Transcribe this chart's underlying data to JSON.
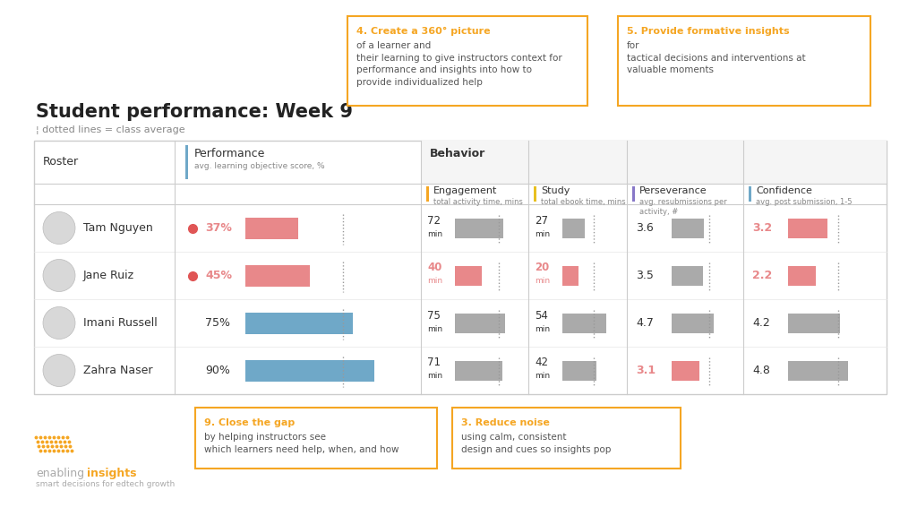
{
  "title": "Student performance: Week 9",
  "subtitle": "¦ dotted lines = class average",
  "students": [
    "Tam Nguyen",
    "Jane Ruiz",
    "Imani Russell",
    "Zahra Naser"
  ],
  "performance": {
    "values": [
      37,
      45,
      75,
      90
    ],
    "low_flags": [
      true,
      true,
      false,
      false
    ],
    "class_avg_pct": 68
  },
  "engagement": {
    "values": [
      72,
      40,
      75,
      71
    ],
    "low_flags": [
      false,
      true,
      false,
      false
    ],
    "class_avg": 65
  },
  "study": {
    "values": [
      27,
      20,
      54,
      42
    ],
    "low_flags": [
      false,
      true,
      false,
      false
    ],
    "class_avg": 38
  },
  "perseverance": {
    "values": [
      3.6,
      3.5,
      4.7,
      3.1
    ],
    "low_flags": [
      false,
      false,
      false,
      true
    ],
    "class_avg": 4.2
  },
  "confidence": {
    "values": [
      3.2,
      2.2,
      4.2,
      4.8
    ],
    "low_flags": [
      true,
      true,
      false,
      false
    ],
    "class_avg": 4.0
  },
  "colors": {
    "low": "#e8888a",
    "normal_blue": "#6fa8c8",
    "normal_gray": "#aaaaaa",
    "orange": "#f5a623",
    "red_dot": "#e05555",
    "background": "#ffffff",
    "header_blue_line": "#6fa8c8",
    "header_orange_line": "#f5a623",
    "header_yellow_line": "#e8c020",
    "header_purple_line": "#8878c8",
    "text_dark": "#333333",
    "text_gray": "#888888",
    "box_border_orange": "#f5a623",
    "table_line": "#cccccc",
    "row_line": "#e8e8e8"
  }
}
